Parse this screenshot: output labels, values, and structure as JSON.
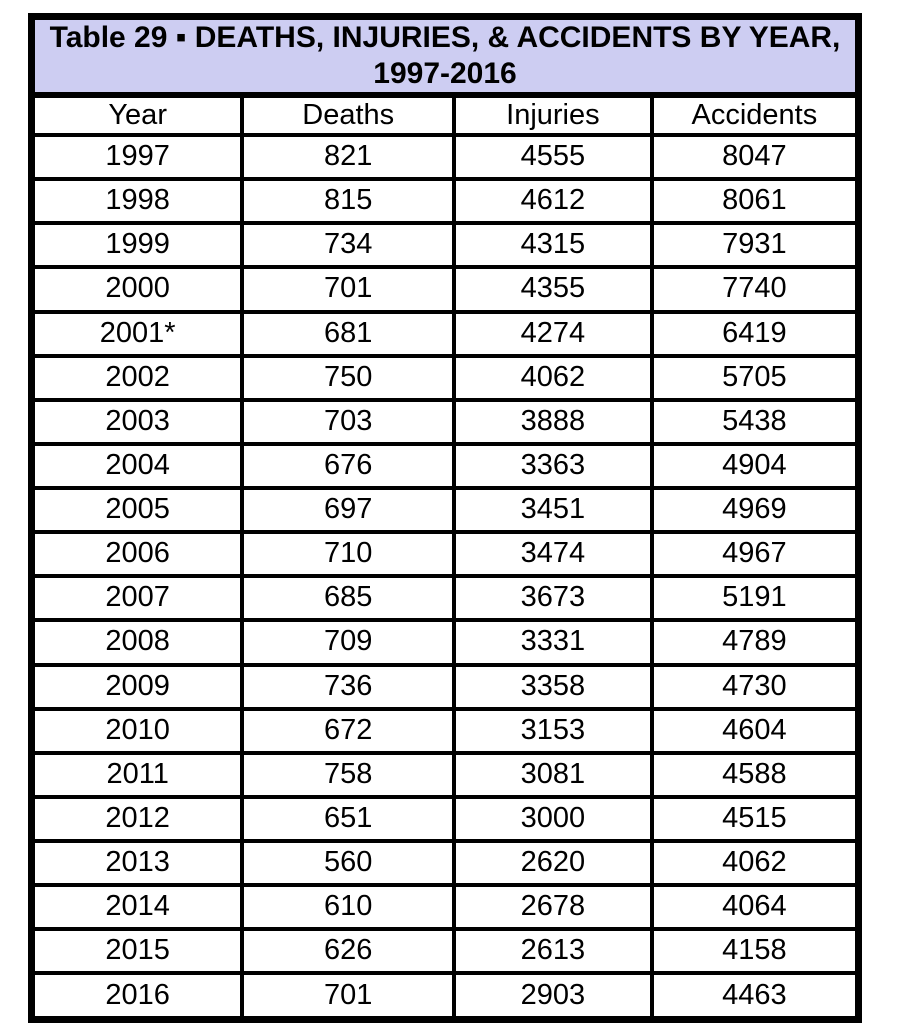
{
  "colors": {
    "title_bg": "#CDCDF2",
    "border": "#000000",
    "cell_bg": "#FFFFFF",
    "text": "#000000",
    "page_bg": "#FFFFFF"
  },
  "table": {
    "title_line1": "Table 29 ▪ DEATHS, INJURIES, & ACCIDENTS BY YEAR,",
    "title_line2": "1997-2016",
    "columns": [
      "Year",
      "Deaths",
      "Injuries",
      "Accidents"
    ],
    "rows": [
      [
        "1997",
        "821",
        "4555",
        "8047"
      ],
      [
        "1998",
        "815",
        "4612",
        "8061"
      ],
      [
        "1999",
        "734",
        "4315",
        "7931"
      ],
      [
        "2000",
        "701",
        "4355",
        "7740"
      ],
      [
        "2001*",
        "681",
        "4274",
        "6419"
      ],
      [
        "2002",
        "750",
        "4062",
        "5705"
      ],
      [
        "2003",
        "703",
        "3888",
        "5438"
      ],
      [
        "2004",
        "676",
        "3363",
        "4904"
      ],
      [
        "2005",
        "697",
        "3451",
        "4969"
      ],
      [
        "2006",
        "710",
        "3474",
        "4967"
      ],
      [
        "2007",
        "685",
        "3673",
        "5191"
      ],
      [
        "2008",
        "709",
        "3331",
        "4789"
      ],
      [
        "2009",
        "736",
        "3358",
        "4730"
      ],
      [
        "2010",
        "672",
        "3153",
        "4604"
      ],
      [
        "2011",
        "758",
        "3081",
        "4588"
      ],
      [
        "2012",
        "651",
        "3000",
        "4515"
      ],
      [
        "2013",
        "560",
        "2620",
        "4062"
      ],
      [
        "2014",
        "610",
        "2678",
        "4064"
      ],
      [
        "2015",
        "626",
        "2613",
        "4158"
      ],
      [
        "2016",
        "701",
        "2903",
        "4463"
      ]
    ]
  },
  "chart_data": {
    "type": "table",
    "title": "Table 29 - DEATHS, INJURIES, & ACCIDENTS BY YEAR, 1997-2016",
    "categories": [
      "1997",
      "1998",
      "1999",
      "2000",
      "2001",
      "2002",
      "2003",
      "2004",
      "2005",
      "2006",
      "2007",
      "2008",
      "2009",
      "2010",
      "2011",
      "2012",
      "2013",
      "2014",
      "2015",
      "2016"
    ],
    "series": [
      {
        "name": "Deaths",
        "values": [
          821,
          815,
          734,
          701,
          681,
          750,
          703,
          676,
          697,
          710,
          685,
          709,
          736,
          672,
          758,
          651,
          560,
          610,
          626,
          701
        ]
      },
      {
        "name": "Injuries",
        "values": [
          4555,
          4612,
          4315,
          4355,
          4274,
          4062,
          3888,
          3363,
          3451,
          3474,
          3673,
          3331,
          3358,
          3153,
          3081,
          3000,
          2620,
          2678,
          2613,
          2903
        ]
      },
      {
        "name": "Accidents",
        "values": [
          8047,
          8061,
          7931,
          7740,
          6419,
          5705,
          5438,
          4904,
          4969,
          4967,
          5191,
          4789,
          4730,
          4604,
          4588,
          4515,
          4062,
          4064,
          4158,
          4463
        ]
      }
    ],
    "note": "2001 value marked with asterisk in source table"
  }
}
